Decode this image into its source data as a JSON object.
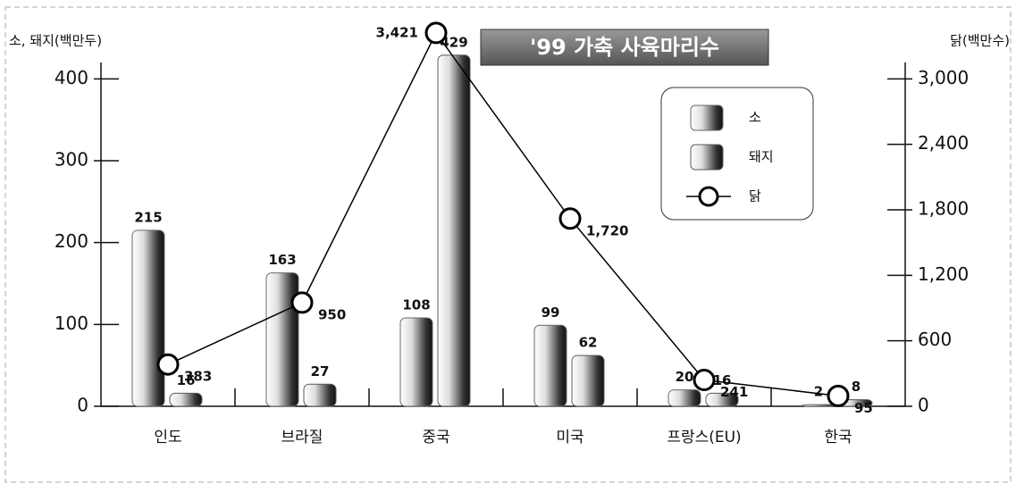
{
  "chart_data": {
    "type": "bar",
    "title": "'99 가축 사육마리수",
    "y_label": "소, 돼지(백만두)",
    "y2_label": "닭(백만수)",
    "categories": [
      "인도",
      "브라질",
      "중국",
      "미국",
      "프랑스(EU)",
      "한국"
    ],
    "series": [
      {
        "name": "소",
        "color": "#6a6a6a",
        "values": [
          215,
          163,
          108,
          99,
          20,
          2
        ]
      },
      {
        "name": "돼지",
        "color": "#5a5a5a",
        "values": [
          16,
          27,
          429,
          62,
          16,
          8
        ]
      },
      {
        "name": "닭",
        "type": "line",
        "axis": "y2",
        "color": "#000000",
        "values": [
          383,
          950,
          3421,
          1720,
          241,
          95
        ],
        "value_labels": [
          "383",
          "950",
          "3,421",
          "1,720",
          "241",
          "95"
        ]
      }
    ],
    "ylim": [
      0,
      420
    ],
    "yticks": [
      0,
      100,
      200,
      300,
      400
    ],
    "y2lim": [
      0,
      3150
    ],
    "y2ticks": [
      0,
      600,
      {
        "value": 1200,
        "label": "1,200"
      },
      {
        "value": 1800,
        "label": "1,800"
      },
      {
        "value": 2400,
        "label": "2,400"
      },
      {
        "value": 3000,
        "label": "3,000"
      }
    ],
    "legend": "upper right"
  }
}
